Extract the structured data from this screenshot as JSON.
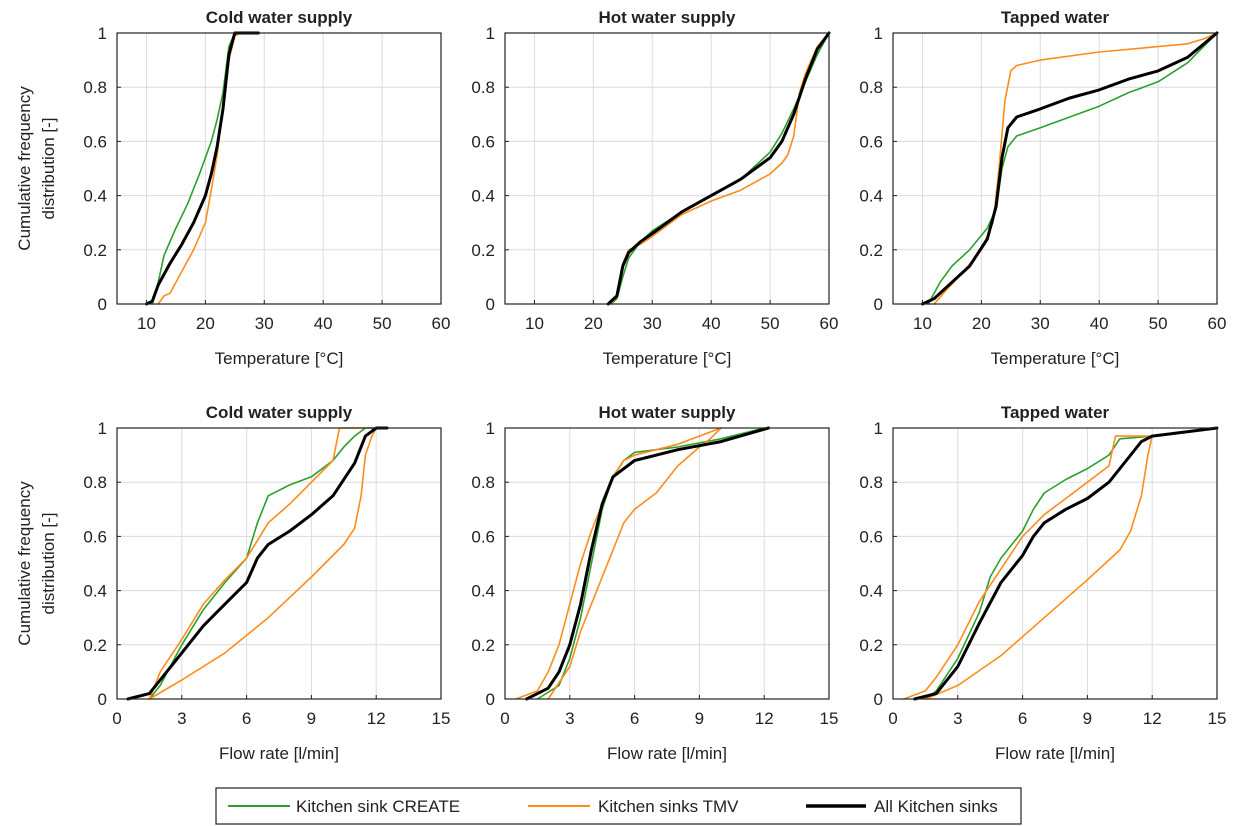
{
  "colors": {
    "create": "#2ca02c",
    "tmv": "#ff8c1a",
    "all": "#000000"
  },
  "legend": {
    "items": [
      {
        "key": "create",
        "label": "Kitchen sink CREATE"
      },
      {
        "key": "tmv",
        "label": "Kitchen sinks TMV"
      },
      {
        "key": "all",
        "label": "All Kitchen sinks"
      }
    ]
  },
  "chart_data": [
    {
      "type": "line",
      "title": "Cold water supply",
      "xlabel": "Temperature [°C]",
      "ylabel": "Cumulative frequency distribution [-]",
      "xlim": [
        5,
        60
      ],
      "ylim": [
        0,
        1
      ],
      "xticks": [
        10,
        20,
        30,
        40,
        50,
        60
      ],
      "yticks": [
        0,
        0.2,
        0.4,
        0.6,
        0.8,
        1
      ],
      "grid": true,
      "series": [
        {
          "key": "create",
          "name": "Kitchen sink CREATE",
          "x": [
            11,
            12,
            13,
            15,
            17,
            19,
            20,
            21,
            22,
            23,
            24,
            25,
            26
          ],
          "y": [
            0,
            0.08,
            0.18,
            0.28,
            0.37,
            0.48,
            0.54,
            0.6,
            0.68,
            0.78,
            0.95,
            1.0,
            1.0
          ]
        },
        {
          "key": "tmv",
          "name": "Kitchen sinks TMV",
          "x": [
            12,
            13,
            14,
            16,
            18,
            20,
            21,
            22,
            23,
            24,
            25,
            26
          ],
          "y": [
            0,
            0.03,
            0.04,
            0.12,
            0.2,
            0.3,
            0.42,
            0.55,
            0.72,
            0.9,
            0.99,
            1.0
          ]
        },
        {
          "key": "all",
          "name": "All Kitchen sinks",
          "x": [
            10,
            11,
            12,
            14,
            16,
            18,
            20,
            21,
            22,
            23,
            24,
            25,
            29
          ],
          "y": [
            0,
            0.01,
            0.07,
            0.15,
            0.22,
            0.3,
            0.4,
            0.48,
            0.58,
            0.72,
            0.92,
            1.0,
            1.0
          ]
        }
      ]
    },
    {
      "type": "line",
      "title": "Hot water supply",
      "xlabel": "Temperature [°C]",
      "ylabel": "",
      "xlim": [
        5,
        60
      ],
      "ylim": [
        0,
        1
      ],
      "xticks": [
        10,
        20,
        30,
        40,
        50,
        60
      ],
      "yticks": [
        0,
        0.2,
        0.4,
        0.6,
        0.8,
        1
      ],
      "grid": true,
      "series": [
        {
          "key": "create",
          "name": "Kitchen sink CREATE",
          "x": [
            23,
            24,
            25,
            26,
            28,
            30,
            35,
            40,
            45,
            50,
            52,
            54,
            56,
            58,
            60
          ],
          "y": [
            0,
            0.02,
            0.1,
            0.17,
            0.23,
            0.27,
            0.34,
            0.4,
            0.46,
            0.56,
            0.63,
            0.72,
            0.82,
            0.92,
            1.0
          ]
        },
        {
          "key": "tmv",
          "name": "Kitchen sinks TMV",
          "x": [
            23,
            24,
            25,
            26,
            28,
            30,
            35,
            40,
            45,
            50,
            52,
            53,
            54,
            55,
            56,
            58,
            60
          ],
          "y": [
            0,
            0.03,
            0.15,
            0.2,
            0.22,
            0.25,
            0.33,
            0.38,
            0.42,
            0.48,
            0.52,
            0.55,
            0.62,
            0.78,
            0.85,
            0.95,
            1.0
          ]
        },
        {
          "key": "all",
          "name": "All Kitchen sinks",
          "x": [
            22.5,
            24,
            25,
            26,
            28,
            30,
            35,
            40,
            45,
            50,
            52,
            54,
            56,
            58,
            60
          ],
          "y": [
            0,
            0.03,
            0.14,
            0.19,
            0.23,
            0.26,
            0.34,
            0.4,
            0.46,
            0.54,
            0.6,
            0.7,
            0.83,
            0.94,
            1.0
          ]
        }
      ]
    },
    {
      "type": "line",
      "title": "Tapped water",
      "xlabel": "Temperature [°C]",
      "ylabel": "",
      "xlim": [
        5,
        60
      ],
      "ylim": [
        0,
        1
      ],
      "xticks": [
        10,
        20,
        30,
        40,
        50,
        60
      ],
      "yticks": [
        0,
        0.2,
        0.4,
        0.6,
        0.8,
        1
      ],
      "grid": true,
      "series": [
        {
          "key": "create",
          "name": "Kitchen sink CREATE",
          "x": [
            11,
            13,
            15,
            18,
            21,
            22.5,
            23.5,
            24.5,
            26,
            30,
            35,
            40,
            45,
            50,
            55,
            60
          ],
          "y": [
            0,
            0.08,
            0.14,
            0.2,
            0.28,
            0.35,
            0.5,
            0.58,
            0.62,
            0.65,
            0.69,
            0.73,
            0.78,
            0.82,
            0.89,
            1.0
          ]
        },
        {
          "key": "tmv",
          "name": "Kitchen sinks TMV",
          "x": [
            12,
            14,
            17,
            20,
            22,
            23,
            24,
            25,
            26,
            30,
            40,
            50,
            55,
            58,
            60
          ],
          "y": [
            0,
            0.05,
            0.12,
            0.2,
            0.3,
            0.5,
            0.75,
            0.86,
            0.88,
            0.9,
            0.93,
            0.95,
            0.96,
            0.98,
            1.0
          ]
        },
        {
          "key": "all",
          "name": "All Kitchen sinks",
          "x": [
            10,
            12,
            14,
            18,
            21,
            22.5,
            23.5,
            24.5,
            26,
            30,
            35,
            40,
            45,
            50,
            55,
            60
          ],
          "y": [
            0,
            0.02,
            0.06,
            0.14,
            0.24,
            0.36,
            0.54,
            0.65,
            0.69,
            0.72,
            0.76,
            0.79,
            0.83,
            0.86,
            0.91,
            1.0
          ]
        }
      ]
    },
    {
      "type": "line",
      "title": "Cold water supply",
      "xlabel": "Flow rate [l/min]",
      "ylabel": "Cumulative frequency distribution [-]",
      "xlim": [
        0,
        15
      ],
      "ylim": [
        0,
        1
      ],
      "xticks": [
        0,
        3,
        6,
        9,
        12,
        15
      ],
      "yticks": [
        0,
        0.2,
        0.4,
        0.6,
        0.8,
        1
      ],
      "grid": true,
      "series": [
        {
          "key": "create",
          "name": "Kitchen sink CREATE",
          "x": [
            1.5,
            2,
            3,
            4,
            5,
            6,
            6.5,
            7,
            8,
            9,
            10,
            10.5,
            11,
            11.5,
            12
          ],
          "y": [
            0,
            0.05,
            0.2,
            0.33,
            0.43,
            0.52,
            0.65,
            0.75,
            0.79,
            0.82,
            0.88,
            0.93,
            0.97,
            1.0,
            1.0
          ]
        },
        {
          "key": "tmv",
          "name": "Kitchen sinks TMV",
          "x": [
            1.5,
            2,
            3,
            4,
            5,
            6,
            7,
            8,
            9,
            10,
            10.3,
            10.8,
            11.5
          ],
          "y": [
            0,
            0.1,
            0.22,
            0.35,
            0.44,
            0.52,
            0.65,
            0.72,
            0.8,
            0.88,
            1.0,
            1.0,
            1.0
          ]
        },
        {
          "key": "tmv",
          "name": "Kitchen sinks TMV",
          "x": [
            1.5,
            3,
            5,
            7,
            9,
            10.5,
            11,
            11.3,
            11.5,
            11.8,
            12
          ],
          "y": [
            0,
            0.07,
            0.17,
            0.3,
            0.45,
            0.57,
            0.63,
            0.75,
            0.9,
            0.97,
            1.0
          ]
        },
        {
          "key": "all",
          "name": "All Kitchen sinks",
          "x": [
            0.5,
            1.5,
            2,
            3,
            4,
            5,
            6,
            6.5,
            7,
            8,
            9,
            10,
            11,
            11.5,
            12,
            12.5
          ],
          "y": [
            0,
            0.02,
            0.07,
            0.17,
            0.27,
            0.35,
            0.43,
            0.52,
            0.57,
            0.62,
            0.68,
            0.75,
            0.87,
            0.97,
            1.0,
            1.0
          ]
        }
      ]
    },
    {
      "type": "line",
      "title": "Hot water supply",
      "xlabel": "Flow rate [l/min]",
      "ylabel": "",
      "xlim": [
        0,
        15
      ],
      "ylim": [
        0,
        1
      ],
      "xticks": [
        0,
        3,
        6,
        9,
        12,
        15
      ],
      "yticks": [
        0,
        0.2,
        0.4,
        0.6,
        0.8,
        1
      ],
      "grid": true,
      "series": [
        {
          "key": "create",
          "name": "Kitchen sink CREATE",
          "x": [
            1.5,
            2.5,
            3,
            3.5,
            4,
            4.5,
            5,
            5.5,
            6,
            8,
            10,
            12
          ],
          "y": [
            0,
            0.05,
            0.15,
            0.3,
            0.5,
            0.7,
            0.82,
            0.88,
            0.91,
            0.93,
            0.96,
            1.0
          ]
        },
        {
          "key": "tmv",
          "name": "Kitchen sinks TMV",
          "x": [
            0.5,
            1.5,
            2,
            2.5,
            3,
            3.5,
            4,
            4.5,
            5,
            5.5,
            6,
            8,
            10
          ],
          "y": [
            0,
            0.03,
            0.1,
            0.2,
            0.35,
            0.5,
            0.62,
            0.72,
            0.82,
            0.88,
            0.9,
            0.94,
            1.0
          ]
        },
        {
          "key": "tmv",
          "name": "Kitchen sinks TMV",
          "x": [
            2,
            3,
            3.5,
            4,
            5,
            5.5,
            6,
            7,
            8,
            9,
            9.5,
            10
          ],
          "y": [
            0,
            0.12,
            0.25,
            0.35,
            0.55,
            0.65,
            0.7,
            0.76,
            0.86,
            0.93,
            0.96,
            1.0
          ]
        },
        {
          "key": "all",
          "name": "All Kitchen sinks",
          "x": [
            1,
            2,
            2.5,
            3,
            3.5,
            4,
            4.5,
            5,
            6,
            8,
            10,
            12.2
          ],
          "y": [
            0,
            0.04,
            0.1,
            0.2,
            0.35,
            0.55,
            0.72,
            0.82,
            0.88,
            0.92,
            0.95,
            1.0
          ]
        }
      ]
    },
    {
      "type": "line",
      "title": "Tapped water",
      "xlabel": "Flow rate [l/min]",
      "ylabel": "",
      "xlim": [
        0,
        15
      ],
      "ylim": [
        0,
        1
      ],
      "xticks": [
        0,
        3,
        6,
        9,
        12,
        15
      ],
      "yticks": [
        0,
        0.2,
        0.4,
        0.6,
        0.8,
        1
      ],
      "grid": true,
      "series": [
        {
          "key": "create",
          "name": "Kitchen sink CREATE",
          "x": [
            1.5,
            2,
            3,
            4,
            4.5,
            5,
            6,
            6.5,
            7,
            8,
            9,
            10,
            10.5,
            12,
            15
          ],
          "y": [
            0,
            0.03,
            0.15,
            0.32,
            0.45,
            0.52,
            0.62,
            0.7,
            0.76,
            0.81,
            0.85,
            0.9,
            0.96,
            0.97,
            1.0
          ]
        },
        {
          "key": "tmv",
          "name": "Kitchen sinks TMV",
          "x": [
            0.5,
            1.5,
            2,
            3,
            4,
            5,
            6,
            7,
            8,
            9,
            10,
            10.3,
            11,
            12,
            15
          ],
          "y": [
            0,
            0.03,
            0.08,
            0.2,
            0.36,
            0.48,
            0.6,
            0.68,
            0.74,
            0.8,
            0.86,
            0.97,
            0.97,
            0.97,
            1.0
          ]
        },
        {
          "key": "tmv",
          "name": "Kitchen sinks TMV",
          "x": [
            1.5,
            3,
            5,
            7,
            9,
            10.5,
            11,
            11.5,
            11.8,
            12,
            15
          ],
          "y": [
            0,
            0.05,
            0.16,
            0.3,
            0.44,
            0.55,
            0.62,
            0.75,
            0.9,
            0.97,
            1.0
          ]
        },
        {
          "key": "all",
          "name": "All Kitchen sinks",
          "x": [
            1,
            2,
            3,
            4,
            5,
            6,
            6.5,
            7,
            8,
            9,
            10,
            10.8,
            11.5,
            12,
            15
          ],
          "y": [
            0,
            0.02,
            0.12,
            0.28,
            0.43,
            0.53,
            0.6,
            0.65,
            0.7,
            0.74,
            0.8,
            0.88,
            0.95,
            0.97,
            1.0
          ]
        }
      ]
    }
  ]
}
